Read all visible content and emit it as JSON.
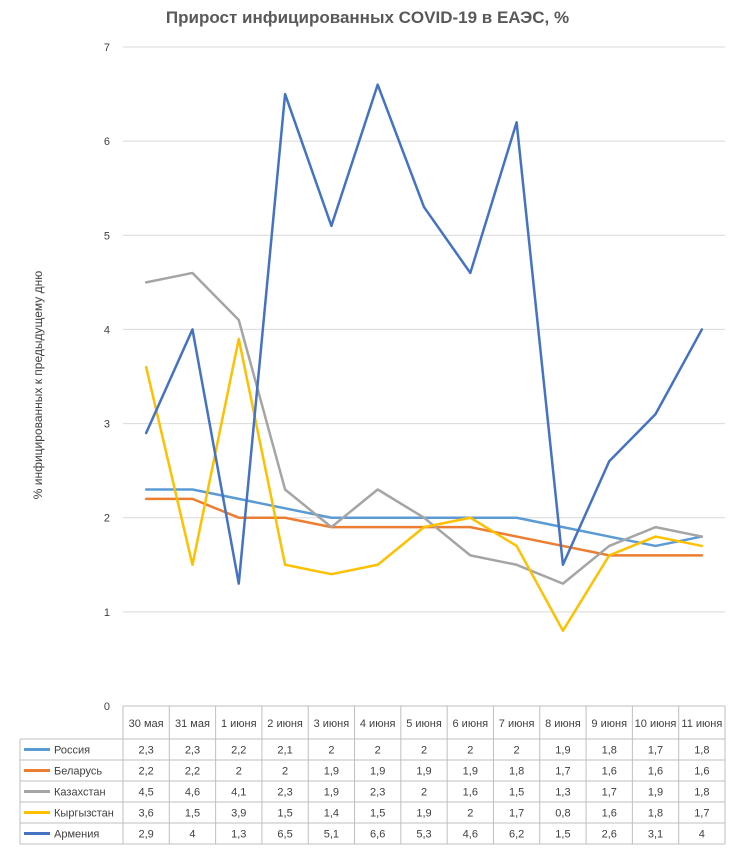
{
  "chart_data": {
    "type": "line",
    "title": "Прирост инфицированных COVID-19 в ЕАЭС, %",
    "ylabel": "% инфицированных к предыдущему дню",
    "ylim": [
      0,
      7
    ],
    "yticks": [
      "0",
      "1",
      "2",
      "3",
      "4",
      "5",
      "6",
      "7"
    ],
    "grid": true,
    "legend": "data-table",
    "categories": [
      "30 мая",
      "31 мая",
      "1 июня",
      "2 июня",
      "3 июня",
      "4 июня",
      "5 июня",
      "6 июня",
      "7 июня",
      "8 июня",
      "9 июня",
      "10 июня",
      "11 июня"
    ],
    "series": [
      {
        "name": "Россия",
        "color": "#5B9BD5",
        "values": [
          2.3,
          2.3,
          2.2,
          2.1,
          2,
          2,
          2,
          2,
          2,
          1.9,
          1.8,
          1.7,
          1.8
        ],
        "labels": [
          "2,3",
          "2,3",
          "2,2",
          "2,1",
          "2",
          "2",
          "2",
          "2",
          "2",
          "1,9",
          "1,8",
          "1,7",
          "1,8"
        ]
      },
      {
        "name": "Беларусь",
        "color": "#ED7D31",
        "values": [
          2.2,
          2.2,
          2,
          2,
          1.9,
          1.9,
          1.9,
          1.9,
          1.8,
          1.7,
          1.6,
          1.6,
          1.6
        ],
        "labels": [
          "2,2",
          "2,2",
          "2",
          "2",
          "1,9",
          "1,9",
          "1,9",
          "1,9",
          "1,8",
          "1,7",
          "1,6",
          "1,6",
          "1,6"
        ]
      },
      {
        "name": "Казахстан",
        "color": "#A5A5A5",
        "values": [
          4.5,
          4.6,
          4.1,
          2.3,
          1.9,
          2.3,
          2,
          1.6,
          1.5,
          1.3,
          1.7,
          1.9,
          1.8
        ],
        "labels": [
          "4,5",
          "4,6",
          "4,1",
          "2,3",
          "1,9",
          "2,3",
          "2",
          "1,6",
          "1,5",
          "1,3",
          "1,7",
          "1,9",
          "1,8"
        ]
      },
      {
        "name": "Кыргызстан",
        "color": "#FFC000",
        "values": [
          3.6,
          1.5,
          3.9,
          1.5,
          1.4,
          1.5,
          1.9,
          2,
          1.7,
          0.8,
          1.6,
          1.8,
          1.7
        ],
        "labels": [
          "3,6",
          "1,5",
          "3,9",
          "1,5",
          "1,4",
          "1,5",
          "1,9",
          "2",
          "1,7",
          "0,8",
          "1,6",
          "1,8",
          "1,7"
        ]
      },
      {
        "name": "Армения",
        "color": "#4472C4",
        "values": [
          2.9,
          4,
          1.3,
          6.5,
          5.1,
          6.6,
          5.3,
          4.6,
          6.2,
          1.5,
          2.6,
          3.1,
          4
        ],
        "labels": [
          "2,9",
          "4",
          "1,3",
          "6,5",
          "5,1",
          "6,6",
          "5,3",
          "4,6",
          "6,2",
          "1,5",
          "2,6",
          "3,1",
          "4"
        ]
      }
    ]
  }
}
